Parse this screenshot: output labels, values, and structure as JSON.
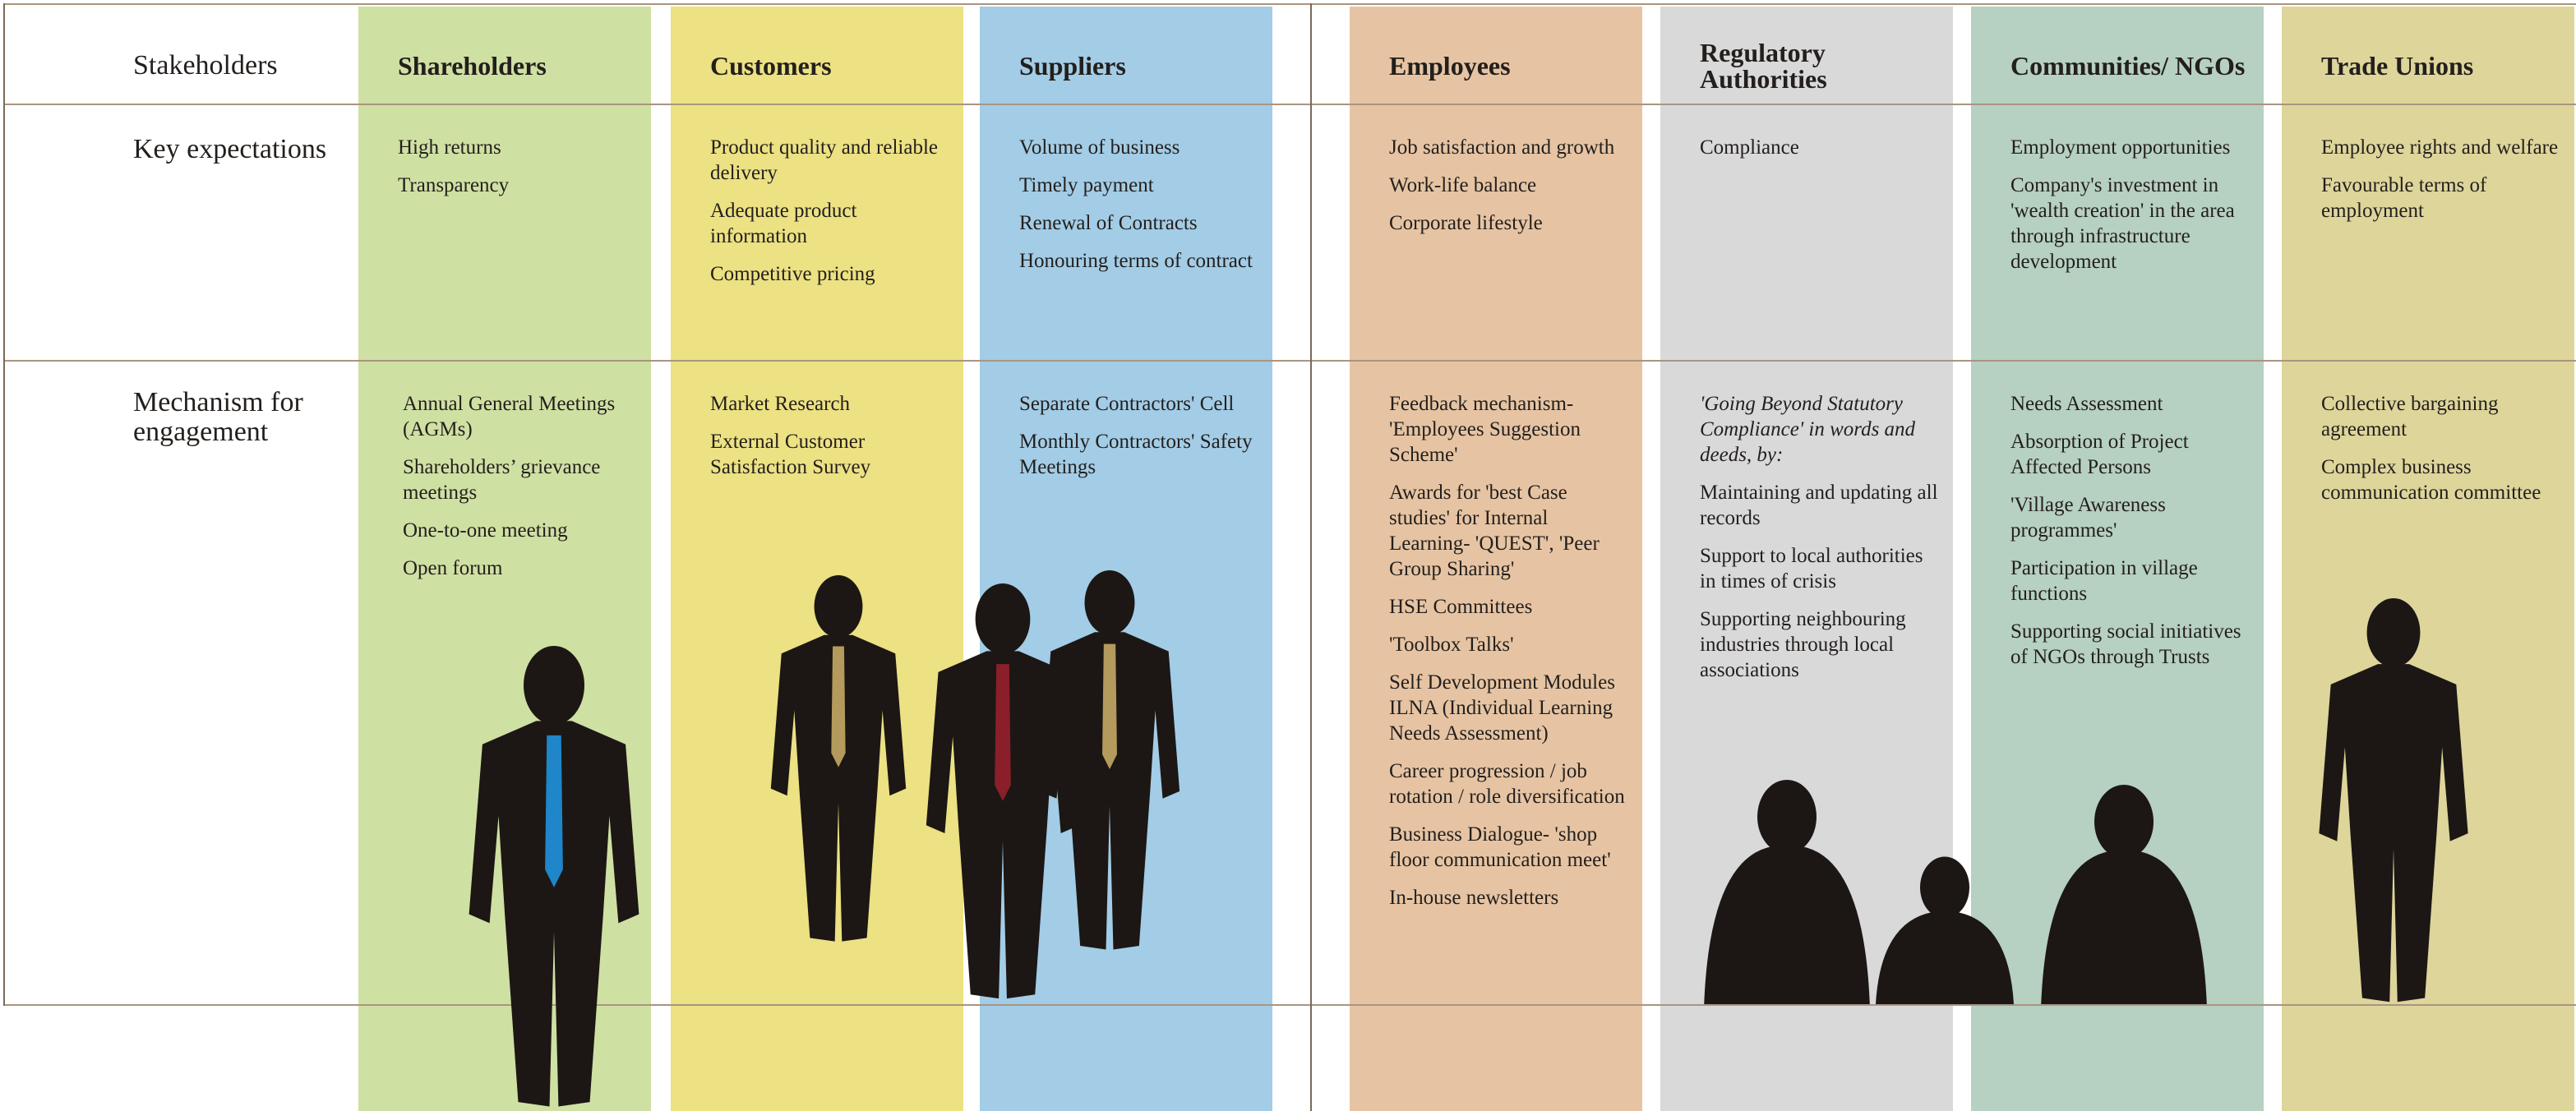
{
  "header": {
    "row_labels": [
      "Stakeholders",
      "Key expectations",
      "Mechanism for engagement"
    ]
  },
  "columns": [
    {
      "name": "Shareholders",
      "color": "#cfe0a3",
      "expectations": [
        "High returns",
        "Transparency"
      ],
      "engagement": [
        "Annual General Meetings (AGMs)",
        "Shareholders’ grievance meetings",
        "One-to-one meeting",
        "Open forum"
      ]
    },
    {
      "name": "Customers",
      "color": "#ece183",
      "expectations": [
        "Product quality and reliable delivery",
        "Adequate product information",
        "Competitive pricing"
      ],
      "engagement": [
        "Market Research",
        "External Customer Satisfaction Survey"
      ]
    },
    {
      "name": "Suppliers",
      "color": "#a3cce6",
      "expectations": [
        "Volume of business",
        "Timely payment",
        "Renewal of  Contracts",
        "Honouring terms of contract"
      ],
      "engagement": [
        "Separate Contractors' Cell",
        "Monthly Contractors' Safety Meetings"
      ]
    },
    {
      "name": "Employees",
      "color": "#e6c4a3",
      "expectations": [
        "Job satisfaction and growth",
        "Work-life balance",
        "Corporate lifestyle"
      ],
      "engagement": [
        "Feedback mechanism- 'Employees Suggestion Scheme'",
        "Awards for 'best Case studies' for Internal Learning- 'QUEST', 'Peer Group Sharing'",
        "HSE Committees",
        "'Toolbox Talks'",
        "Self Development Modules ILNA (Individual Learning Needs Assessment)",
        "Career progression / job rotation / role diversification",
        "Business Dialogue- 'shop floor communication meet'",
        "In-house newsletters"
      ]
    },
    {
      "name": "Regulatory Authorities",
      "color": "#d9d9da",
      "expectations": [
        "Compliance"
      ],
      "engagement_intro": "'Going Beyond Statutory Compliance' in words and deeds, by:",
      "engagement": [
        "Maintaining and updating all records",
        "Support to local authorities in times of crisis",
        "Supporting neighbouring industries through local associations"
      ]
    },
    {
      "name": "Communities/ NGOs",
      "color": "#b6d0c1",
      "expectations": [
        "Employment opportunities",
        "Company's investment in 'wealth creation' in the area through infrastructure development"
      ],
      "engagement": [
        "Needs Assessment",
        "Absorption of Project Affected Persons",
        "'Village Awareness programmes'",
        "Participation in village functions",
        "Supporting social initiatives of NGOs through Trusts"
      ]
    },
    {
      "name": "Trade Unions",
      "color": "#ded59b",
      "expectations": [
        "Employee rights and welfare",
        "Favourable terms of employment"
      ],
      "engagement": [
        "Collective bargaining agreement",
        "Complex business communication committee"
      ]
    }
  ]
}
